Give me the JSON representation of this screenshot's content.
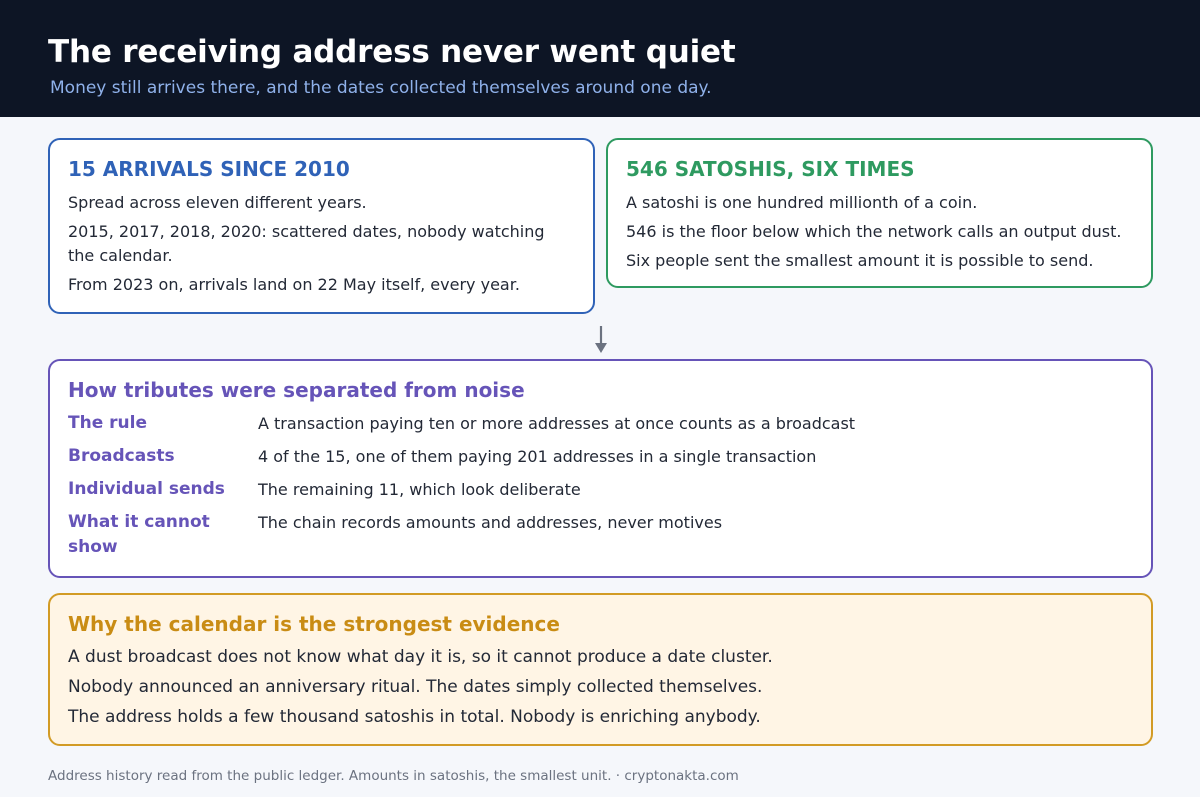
{
  "header": {
    "title": "The receiving address never went quiet",
    "subtitle": "Money still arrives there, and the dates collected themselves around one day."
  },
  "arrivals_card": {
    "title": "15 ARRIVALS SINCE 2010",
    "lines": [
      "Spread across eleven different years.",
      "2015, 2017, 2018, 2020: scattered dates, nobody watching the calendar.",
      "From 2023 on, arrivals land on 22 May itself, every year."
    ]
  },
  "satoshis_card": {
    "title": "546 SATOSHIS, SIX TIMES",
    "lines": [
      "A satoshi is one hundred millionth of a coin.",
      "546 is the floor below which the network calls an output dust.",
      "Six people sent the smallest amount it is possible to send."
    ]
  },
  "method_card": {
    "title": "How tributes were separated from noise",
    "rows": [
      {
        "label": "The rule",
        "text": "A transaction paying ten or more addresses at once counts as a broadcast"
      },
      {
        "label": "Broadcasts",
        "text": "4 of the 15, one of them paying 201 addresses in a single transaction"
      },
      {
        "label": "Individual sends",
        "text": "The remaining 11, which look deliberate"
      },
      {
        "label": "What it cannot show",
        "text": "The chain records amounts and addresses, never motives"
      }
    ]
  },
  "evidence_card": {
    "title": "Why the calendar is the strongest evidence",
    "lines": [
      "A dust broadcast does not know what day it is, so it cannot produce a date cluster.",
      "Nobody announced an anniversary ritual. The dates simply collected themselves.",
      "The address holds a few thousand satoshis in total. Nobody is enriching anybody."
    ]
  },
  "footer": {
    "text": "Address history read from the public ledger. Amounts in satoshis, the smallest unit.  ·  cryptonakta.com"
  },
  "colors": {
    "header_bg": "#0d1525",
    "blue": "#2f62b7",
    "green": "#2e9a60",
    "purple": "#6654b8",
    "gold": "#d29b25"
  },
  "icons": {
    "connector": "arrow-down-icon"
  }
}
